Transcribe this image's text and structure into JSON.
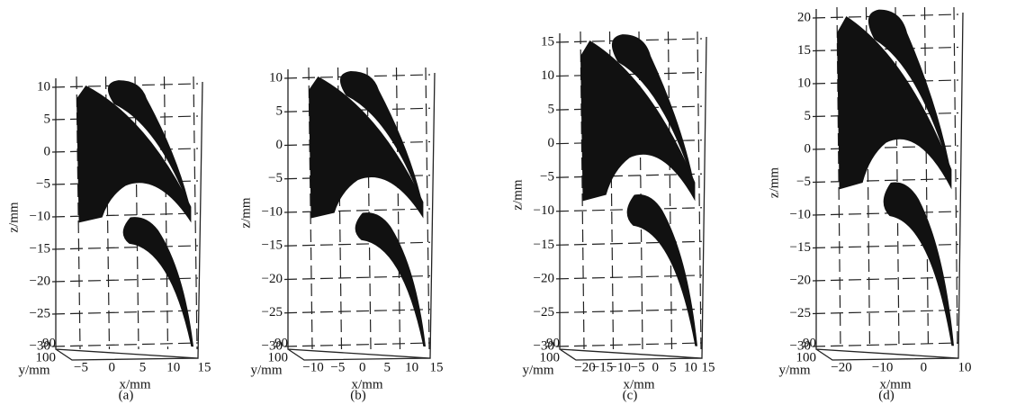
{
  "panels": [
    {
      "caption": "(a)",
      "z_label": "z/mm",
      "x_label": "x/mm",
      "y_label": "y/mm",
      "z_ticks": [
        "10",
        "5",
        "0",
        "−5",
        "−10",
        "−15",
        "−20",
        "−25",
        "−30"
      ],
      "y_ticks": [
        "90",
        "100"
      ],
      "x_ticks": [
        "−5",
        "0",
        "5",
        "10",
        "15"
      ]
    },
    {
      "caption": "(b)",
      "z_label": "z/mm",
      "x_label": "x/mm",
      "y_label": "y/mm",
      "z_ticks": [
        "10",
        "5",
        "0",
        "−5",
        "−10",
        "−15",
        "−20",
        "−25",
        "−30"
      ],
      "y_ticks": [
        "90",
        "100"
      ],
      "x_ticks": [
        "−10",
        "−5",
        "0",
        "5",
        "10",
        "15"
      ]
    },
    {
      "caption": "(c)",
      "z_label": "z/mm",
      "x_label": "x/mm",
      "y_label": "y/mm",
      "z_ticks": [
        "15",
        "10",
        "5",
        "0",
        "−5",
        "−10",
        "−15",
        "−20",
        "−25",
        "−30"
      ],
      "y_ticks": [
        "90",
        "100"
      ],
      "x_ticks": [
        "−20",
        "−15",
        "−10",
        "−5",
        "0",
        "5",
        "10",
        "15"
      ]
    },
    {
      "caption": "(d)",
      "z_label": "z/mm",
      "x_label": "x/mm",
      "y_label": "y/mm",
      "z_ticks": [
        "20",
        "15",
        "10",
        "5",
        "0",
        "−5",
        "−10",
        "−15",
        "−20",
        "−25",
        "−30"
      ],
      "y_ticks": [
        "90",
        "100"
      ],
      "x_ticks": [
        "−20",
        "−10",
        "0",
        "10"
      ]
    }
  ]
}
